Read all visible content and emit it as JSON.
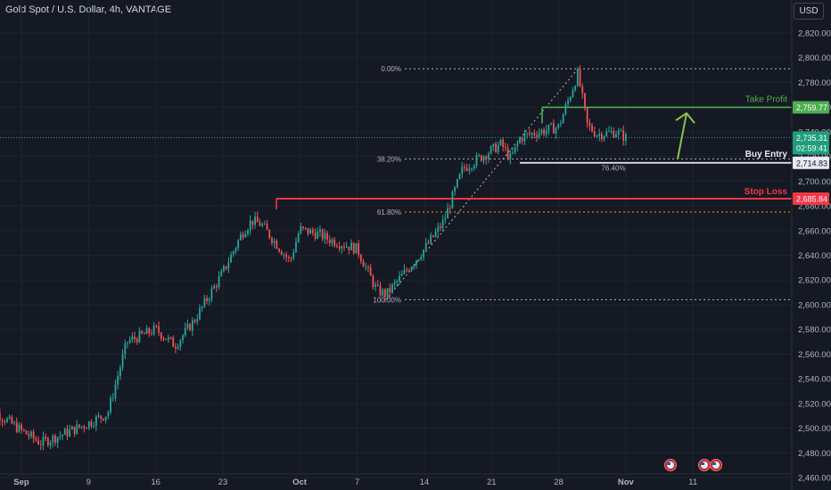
{
  "header": {
    "title": "Gold Spot / U.S. Dollar, 4h, VANTAGE"
  },
  "currency_button": {
    "label": "USD"
  },
  "colors": {
    "background": "#151924",
    "bullish": "#26a69a",
    "bearish": "#ef5350",
    "take_profit": "#4caf50",
    "stop_loss": "#f23645",
    "entry": "#ffffff",
    "arrow": "#8bc34a",
    "fib_618": "#ff9800"
  },
  "chart_data": {
    "type": "candlestick",
    "instrument": "Gold Spot / U.S. Dollar",
    "timeframe": "4h",
    "y_ticks": [
      2460,
      2480,
      2500,
      2520,
      2540,
      2560,
      2580,
      2600,
      2620,
      2640,
      2660,
      2680,
      2700,
      2720,
      2740,
      2760,
      2780,
      2800,
      2820
    ],
    "y_tick_labels": [
      "2,460.00",
      "2,480.00",
      "2,500.00",
      "2,520.00",
      "2,540.00",
      "2,560.00",
      "2,580.00",
      "2,600.00",
      "2,620.00",
      "2,640.00",
      "2,660.00",
      "2,680.00",
      "2,700.00",
      "2,720.00",
      "2,740.00",
      "2,760.00",
      "2,780.00",
      "2,800.00",
      "2,820.00"
    ],
    "x_tick_labels": [
      "Sep",
      "9",
      "16",
      "23",
      "Oct",
      "7",
      "14",
      "21",
      "28",
      "Nov",
      "11"
    ],
    "x_tick_dates": [
      "2024-09-02",
      "2024-09-09",
      "2024-09-16",
      "2024-09-23",
      "2024-10-01",
      "2024-10-07",
      "2024-10-14",
      "2024-10-21",
      "2024-10-28",
      "2024-11-04",
      "2024-11-11"
    ],
    "price_path": [
      [
        "2024-08-29",
        2520
      ],
      [
        "2024-09-02",
        2498
      ],
      [
        "2024-09-04",
        2488
      ],
      [
        "2024-09-06",
        2494
      ],
      [
        "2024-09-09",
        2504
      ],
      [
        "2024-09-11",
        2512
      ],
      [
        "2024-09-13",
        2570
      ],
      [
        "2024-09-16",
        2580
      ],
      [
        "2024-09-18",
        2567
      ],
      [
        "2024-09-20",
        2587
      ],
      [
        "2024-09-23",
        2626
      ],
      [
        "2024-09-25",
        2658
      ],
      [
        "2024-09-26",
        2668
      ],
      [
        "2024-09-27",
        2665
      ],
      [
        "2024-09-30",
        2635
      ],
      [
        "2024-10-01",
        2661
      ],
      [
        "2024-10-03",
        2657
      ],
      [
        "2024-10-04",
        2653
      ],
      [
        "2024-10-07",
        2645
      ],
      [
        "2024-10-09",
        2612
      ],
      [
        "2024-10-10",
        2608
      ],
      [
        "2024-10-14",
        2645
      ],
      [
        "2024-10-16",
        2667
      ],
      [
        "2024-10-18",
        2710
      ],
      [
        "2024-10-21",
        2725
      ],
      [
        "2024-10-22",
        2730
      ],
      [
        "2024-10-23",
        2718
      ],
      [
        "2024-10-24",
        2735
      ],
      [
        "2024-10-25",
        2738
      ],
      [
        "2024-10-28",
        2744
      ],
      [
        "2024-10-30",
        2787
      ],
      [
        "2024-10-31",
        2745
      ],
      [
        "2024-11-01",
        2738
      ],
      [
        "2024-11-03",
        2740
      ],
      [
        "2024-11-04",
        2735
      ]
    ],
    "fibonacci": [
      {
        "label": "0.00%",
        "price": 2791
      },
      {
        "label": "38.20%",
        "price": 2718
      },
      {
        "label": "61.80%",
        "price": 2675
      },
      {
        "label": "100.00%",
        "price": 2604
      }
    ],
    "fib_mid_label": "76.40%",
    "levels": [
      {
        "name": "Take Profit",
        "price": 2759.77,
        "tag": "2,759.77"
      },
      {
        "name": "Buy Entry",
        "price": 2714.83,
        "tag": "2,714.83"
      },
      {
        "name": "Stop Loss",
        "price": 2685.84,
        "tag": "2,685.84"
      }
    ],
    "current_price": {
      "price": 2735.31,
      "tag": "2,735.31",
      "countdown": "02:59:41"
    },
    "ylim": [
      2455,
      2832
    ]
  }
}
